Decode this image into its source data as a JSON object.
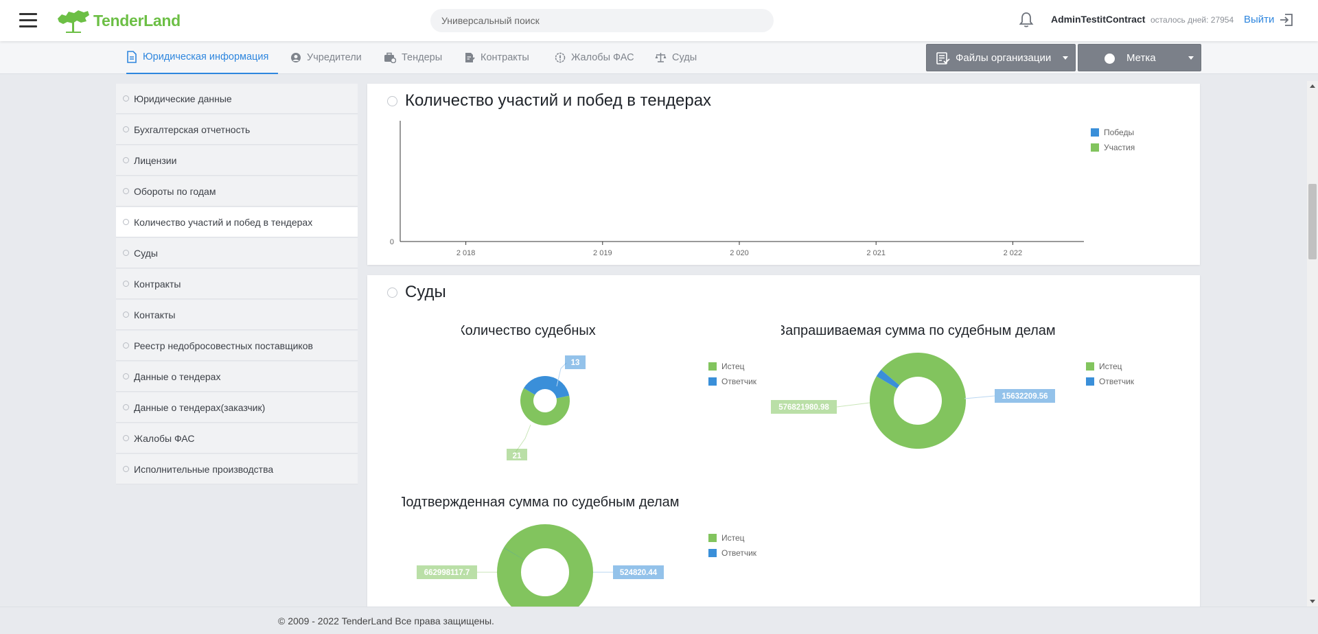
{
  "header": {
    "brand": "TenderLand",
    "search_placeholder": "Универсальный поиск",
    "username": "AdminTestitContract",
    "days_left": "осталось дней: 27954",
    "logout_label": "Выйти"
  },
  "tabs": [
    {
      "label": "Юридическая информация",
      "icon": "document-icon",
      "active": true
    },
    {
      "label": "Учредители",
      "icon": "user-circle-icon",
      "active": false
    },
    {
      "label": "Тендеры",
      "icon": "briefcase-icon",
      "active": false
    },
    {
      "label": "Контракты",
      "icon": "signed-document-icon",
      "active": false
    },
    {
      "label": "Жалобы ФАС",
      "icon": "alert-icon",
      "active": false
    },
    {
      "label": "Суды",
      "icon": "scales-icon",
      "active": false
    }
  ],
  "toolbar": {
    "files_label": "Файлы организации",
    "tag_label": "Метка"
  },
  "sidebar": {
    "items": [
      {
        "label": "Юридические данные"
      },
      {
        "label": "Бухгалтерская отчетность"
      },
      {
        "label": "Лицензии"
      },
      {
        "label": "Обороты по годам"
      },
      {
        "label": "Количество участий и побед в тендерах",
        "active": true
      },
      {
        "label": "Суды"
      },
      {
        "label": "Контракты"
      },
      {
        "label": "Контакты"
      },
      {
        "label": "Реестр недобросовестных поставщиков"
      },
      {
        "label": "Данные о тендерах"
      },
      {
        "label": "Данные о тендерах(заказчик)"
      },
      {
        "label": "Жалобы ФАС"
      },
      {
        "label": "Исполнительные производства"
      }
    ]
  },
  "sections": {
    "tenders": {
      "title": "Количество участий и побед в тендерах"
    },
    "courts": {
      "title": "Суды"
    }
  },
  "colors": {
    "green": "#82c45e",
    "blue": "#3a8fd9",
    "accent": "#2e86de"
  },
  "chart_data": [
    {
      "type": "bar",
      "title": "Количество участий и побед в тендерах",
      "categories": [
        "2 018",
        "2 019",
        "2 020",
        "2 021",
        "2 022"
      ],
      "series": [
        {
          "name": "Победы",
          "color": "#3a8fd9",
          "values": [
            0,
            0,
            0,
            0,
            0
          ]
        },
        {
          "name": "Участия",
          "color": "#82c45e",
          "values": [
            0,
            0,
            0,
            0,
            0
          ]
        }
      ],
      "y_tick": "0",
      "legend": "top-right"
    },
    {
      "type": "pie",
      "title": "Количество судебных дел",
      "slices": [
        {
          "name": "Истец",
          "value": 21,
          "label": "21",
          "color": "#82c45e"
        },
        {
          "name": "Ответчик",
          "value": 13,
          "label": "13",
          "color": "#3a8fd9"
        }
      ],
      "legend": "right"
    },
    {
      "type": "pie",
      "title": "Запрашиваемая сумма по судебным делам",
      "slices": [
        {
          "name": "Истец",
          "value": 576821980.98,
          "label": "576821980.98",
          "color": "#82c45e"
        },
        {
          "name": "Ответчик",
          "value": 15632209.56,
          "label": "15632209.56",
          "color": "#3a8fd9"
        }
      ],
      "legend": "right"
    },
    {
      "type": "pie",
      "title": "Подтвержденная сумма по судебным делам",
      "slices": [
        {
          "name": "Истец",
          "value": 662998117.7,
          "label": "662998117.7",
          "color": "#82c45e"
        },
        {
          "name": "Ответчик",
          "value": 524820.44,
          "label": "524820.44",
          "color": "#3a8fd9"
        }
      ],
      "legend": "right"
    }
  ],
  "footer": {
    "copyright": "© 2009 - 2022 TenderLand Все права защищены."
  }
}
